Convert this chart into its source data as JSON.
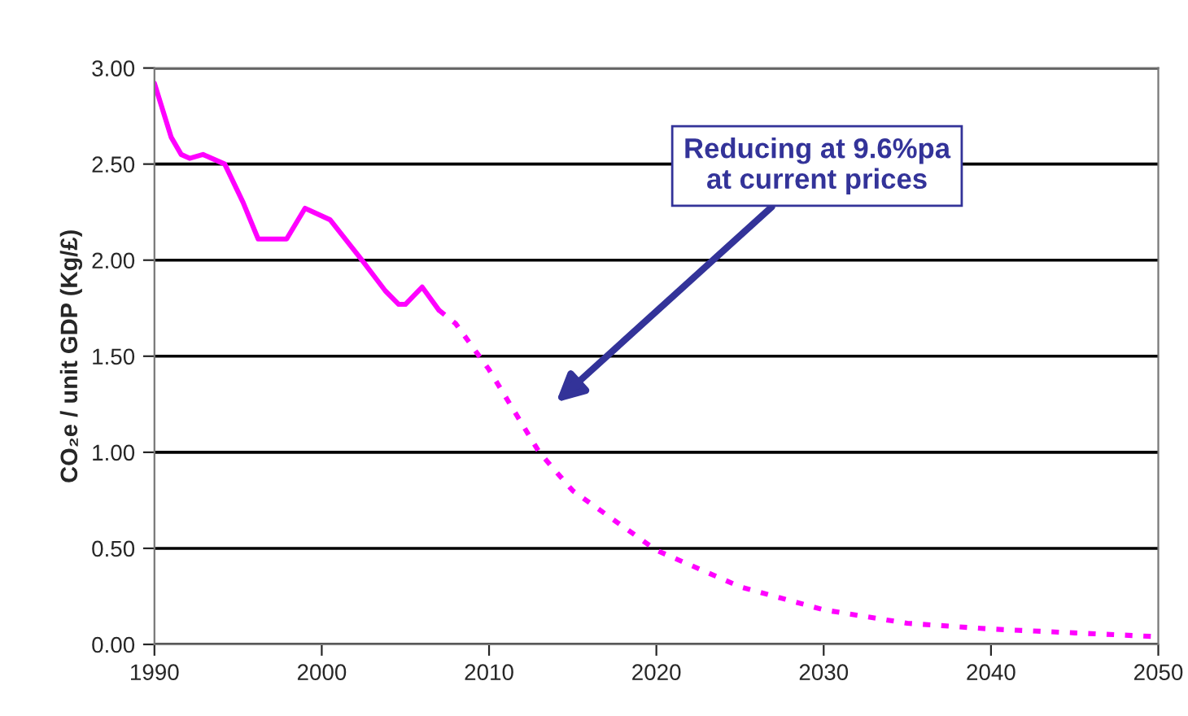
{
  "chart_data": {
    "type": "line",
    "ylabel": "CO₂e / unit GDP (Kg/£)",
    "xlim": [
      1990,
      2050
    ],
    "xticks": [
      1990,
      2000,
      2010,
      2020,
      2030,
      2040,
      2050
    ],
    "ylim": [
      0,
      3
    ],
    "yticks": [
      {
        "value": 0,
        "label": "0.00"
      },
      {
        "value": 0.5,
        "label": "0.50"
      },
      {
        "value": 1,
        "label": "1.00"
      },
      {
        "value": 1.5,
        "label": "1.50"
      },
      {
        "value": 2,
        "label": "2.00"
      },
      {
        "value": 2.5,
        "label": "2.50"
      },
      {
        "value": 3,
        "label": "3.00"
      }
    ],
    "grid": "y",
    "marker": "none",
    "series": [
      {
        "color": "#ff00ff",
        "line_style": "solid",
        "x": [
          1990,
          1991,
          1991.6,
          1992.1,
          1992.9,
          1994.2,
          1995.3,
          1996.2,
          1997.9,
          1999,
          2000.5,
          2002.4,
          2003.8,
          2004.6,
          2005,
          2006,
          2007
        ],
        "values": [
          2.92,
          2.64,
          2.55,
          2.53,
          2.55,
          2.5,
          2.3,
          2.11,
          2.11,
          2.27,
          2.21,
          2.0,
          1.84,
          1.77,
          1.77,
          1.86,
          1.74
        ]
      },
      {
        "color": "#ff00ff",
        "line_style": "dotted",
        "x": [
          2007,
          2008,
          2010,
          2013,
          2015,
          2020,
          2025,
          2030,
          2035,
          2040,
          2045,
          2050
        ],
        "values": [
          1.74,
          1.67,
          1.43,
          1.0,
          0.8,
          0.49,
          0.3,
          0.18,
          0.11,
          0.08,
          0.06,
          0.04
        ]
      }
    ],
    "annotations": [
      "Reducing at 9.6%pa\nat current prices"
    ]
  }
}
